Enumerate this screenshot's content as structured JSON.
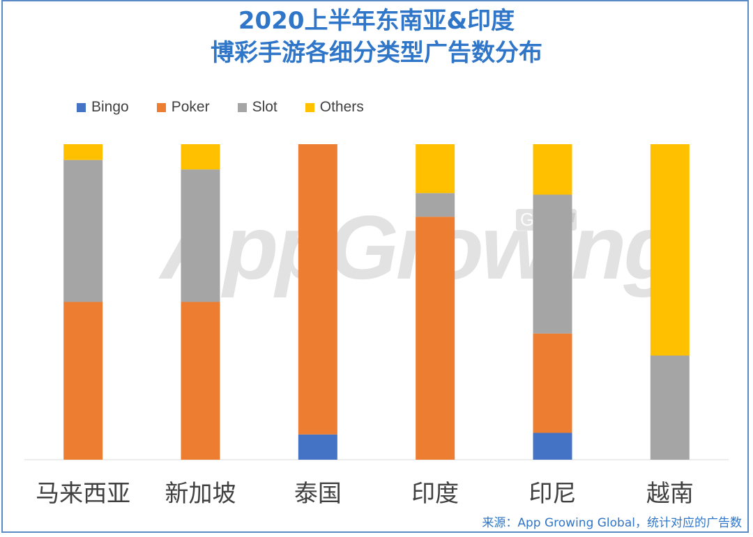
{
  "title_line1": "2020上半年东南亚&印度",
  "title_line2": "博彩手游各细分类型广告数分布",
  "watermark": "AppGrowing",
  "watermark_badge": "Global",
  "source": "来源：App Growing Global，统计对应的广告数",
  "colors": {
    "Bingo": "#4472c4",
    "Poker": "#ed7d31",
    "Slot": "#a5a5a5",
    "Others": "#ffc000",
    "title": "#2f75c8"
  },
  "chart_data": {
    "type": "bar",
    "stacked": true,
    "percent_stacked": true,
    "legend_position": "top-left",
    "grid": false,
    "categories": [
      "马来西亚",
      "新加坡",
      "泰国",
      "印度",
      "印尼",
      "越南"
    ],
    "series": [
      {
        "name": "Bingo",
        "values": [
          0,
          0,
          8,
          0,
          8.5,
          0
        ]
      },
      {
        "name": "Poker",
        "values": [
          50,
          50,
          92,
          77,
          31.5,
          0
        ]
      },
      {
        "name": "Slot",
        "values": [
          45,
          42,
          0,
          7.5,
          44,
          33
        ]
      },
      {
        "name": "Others",
        "values": [
          5,
          8,
          0,
          15.5,
          16,
          67
        ]
      }
    ],
    "ylim": [
      0,
      100
    ]
  }
}
